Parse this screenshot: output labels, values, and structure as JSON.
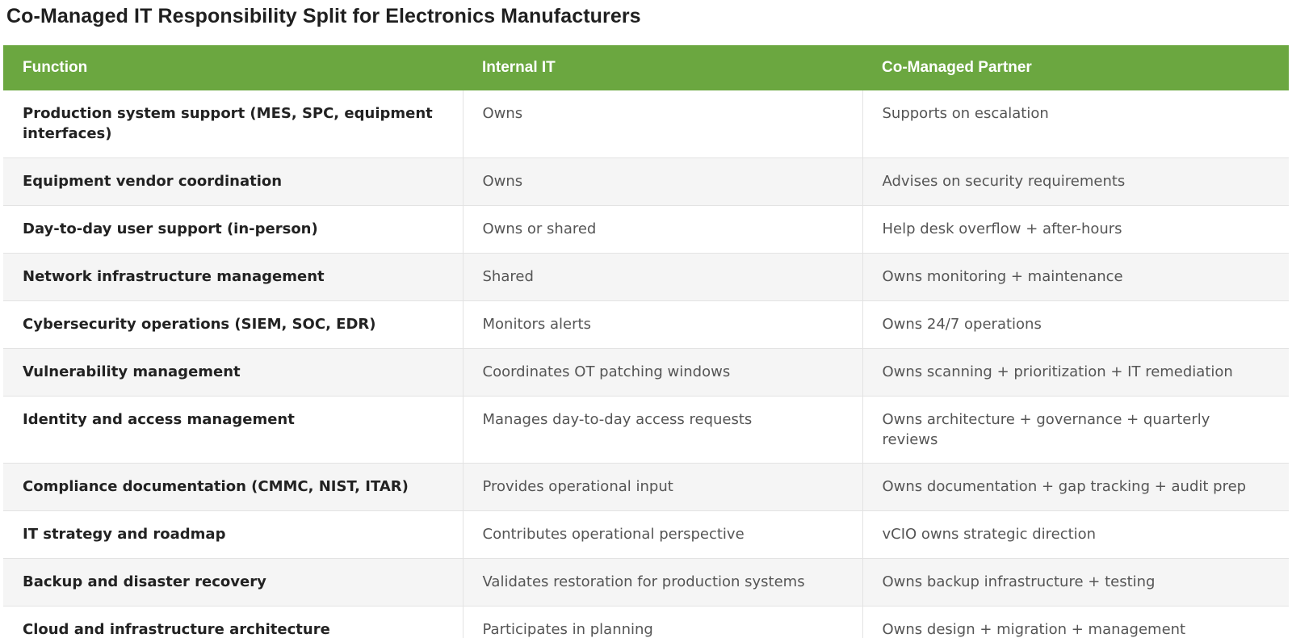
{
  "title": "Co-Managed IT Responsibility Split for Electronics Manufacturers",
  "colors": {
    "header_bg": "#6ba740",
    "header_text": "#ffffff",
    "row_alt_bg": "#f5f5f5"
  },
  "table": {
    "headers": [
      "Function",
      "Internal IT",
      "Co-Managed Partner"
    ],
    "rows": [
      [
        "Production system support (MES, SPC, equipment interfaces)",
        "Owns",
        "Supports on escalation"
      ],
      [
        "Equipment vendor coordination",
        "Owns",
        "Advises on security requirements"
      ],
      [
        "Day-to-day user support (in-person)",
        "Owns or shared",
        "Help desk overflow + after-hours"
      ],
      [
        "Network infrastructure management",
        "Shared",
        "Owns monitoring + maintenance"
      ],
      [
        "Cybersecurity operations (SIEM, SOC, EDR)",
        "Monitors alerts",
        "Owns 24/7 operations"
      ],
      [
        "Vulnerability management",
        "Coordinates OT patching windows",
        "Owns scanning + prioritization + IT remediation"
      ],
      [
        "Identity and access management",
        "Manages day-to-day access requests",
        "Owns architecture + governance + quarterly reviews"
      ],
      [
        "Compliance documentation (CMMC, NIST, ITAR)",
        "Provides operational input",
        "Owns documentation + gap tracking + audit prep"
      ],
      [
        "IT strategy and roadmap",
        "Contributes operational perspective",
        "vCIO owns strategic direction"
      ],
      [
        "Backup and disaster recovery",
        "Validates restoration for production systems",
        "Owns backup infrastructure + testing"
      ],
      [
        "Cloud and infrastructure architecture",
        "Participates in planning",
        "Owns design + migration + management"
      ]
    ]
  }
}
